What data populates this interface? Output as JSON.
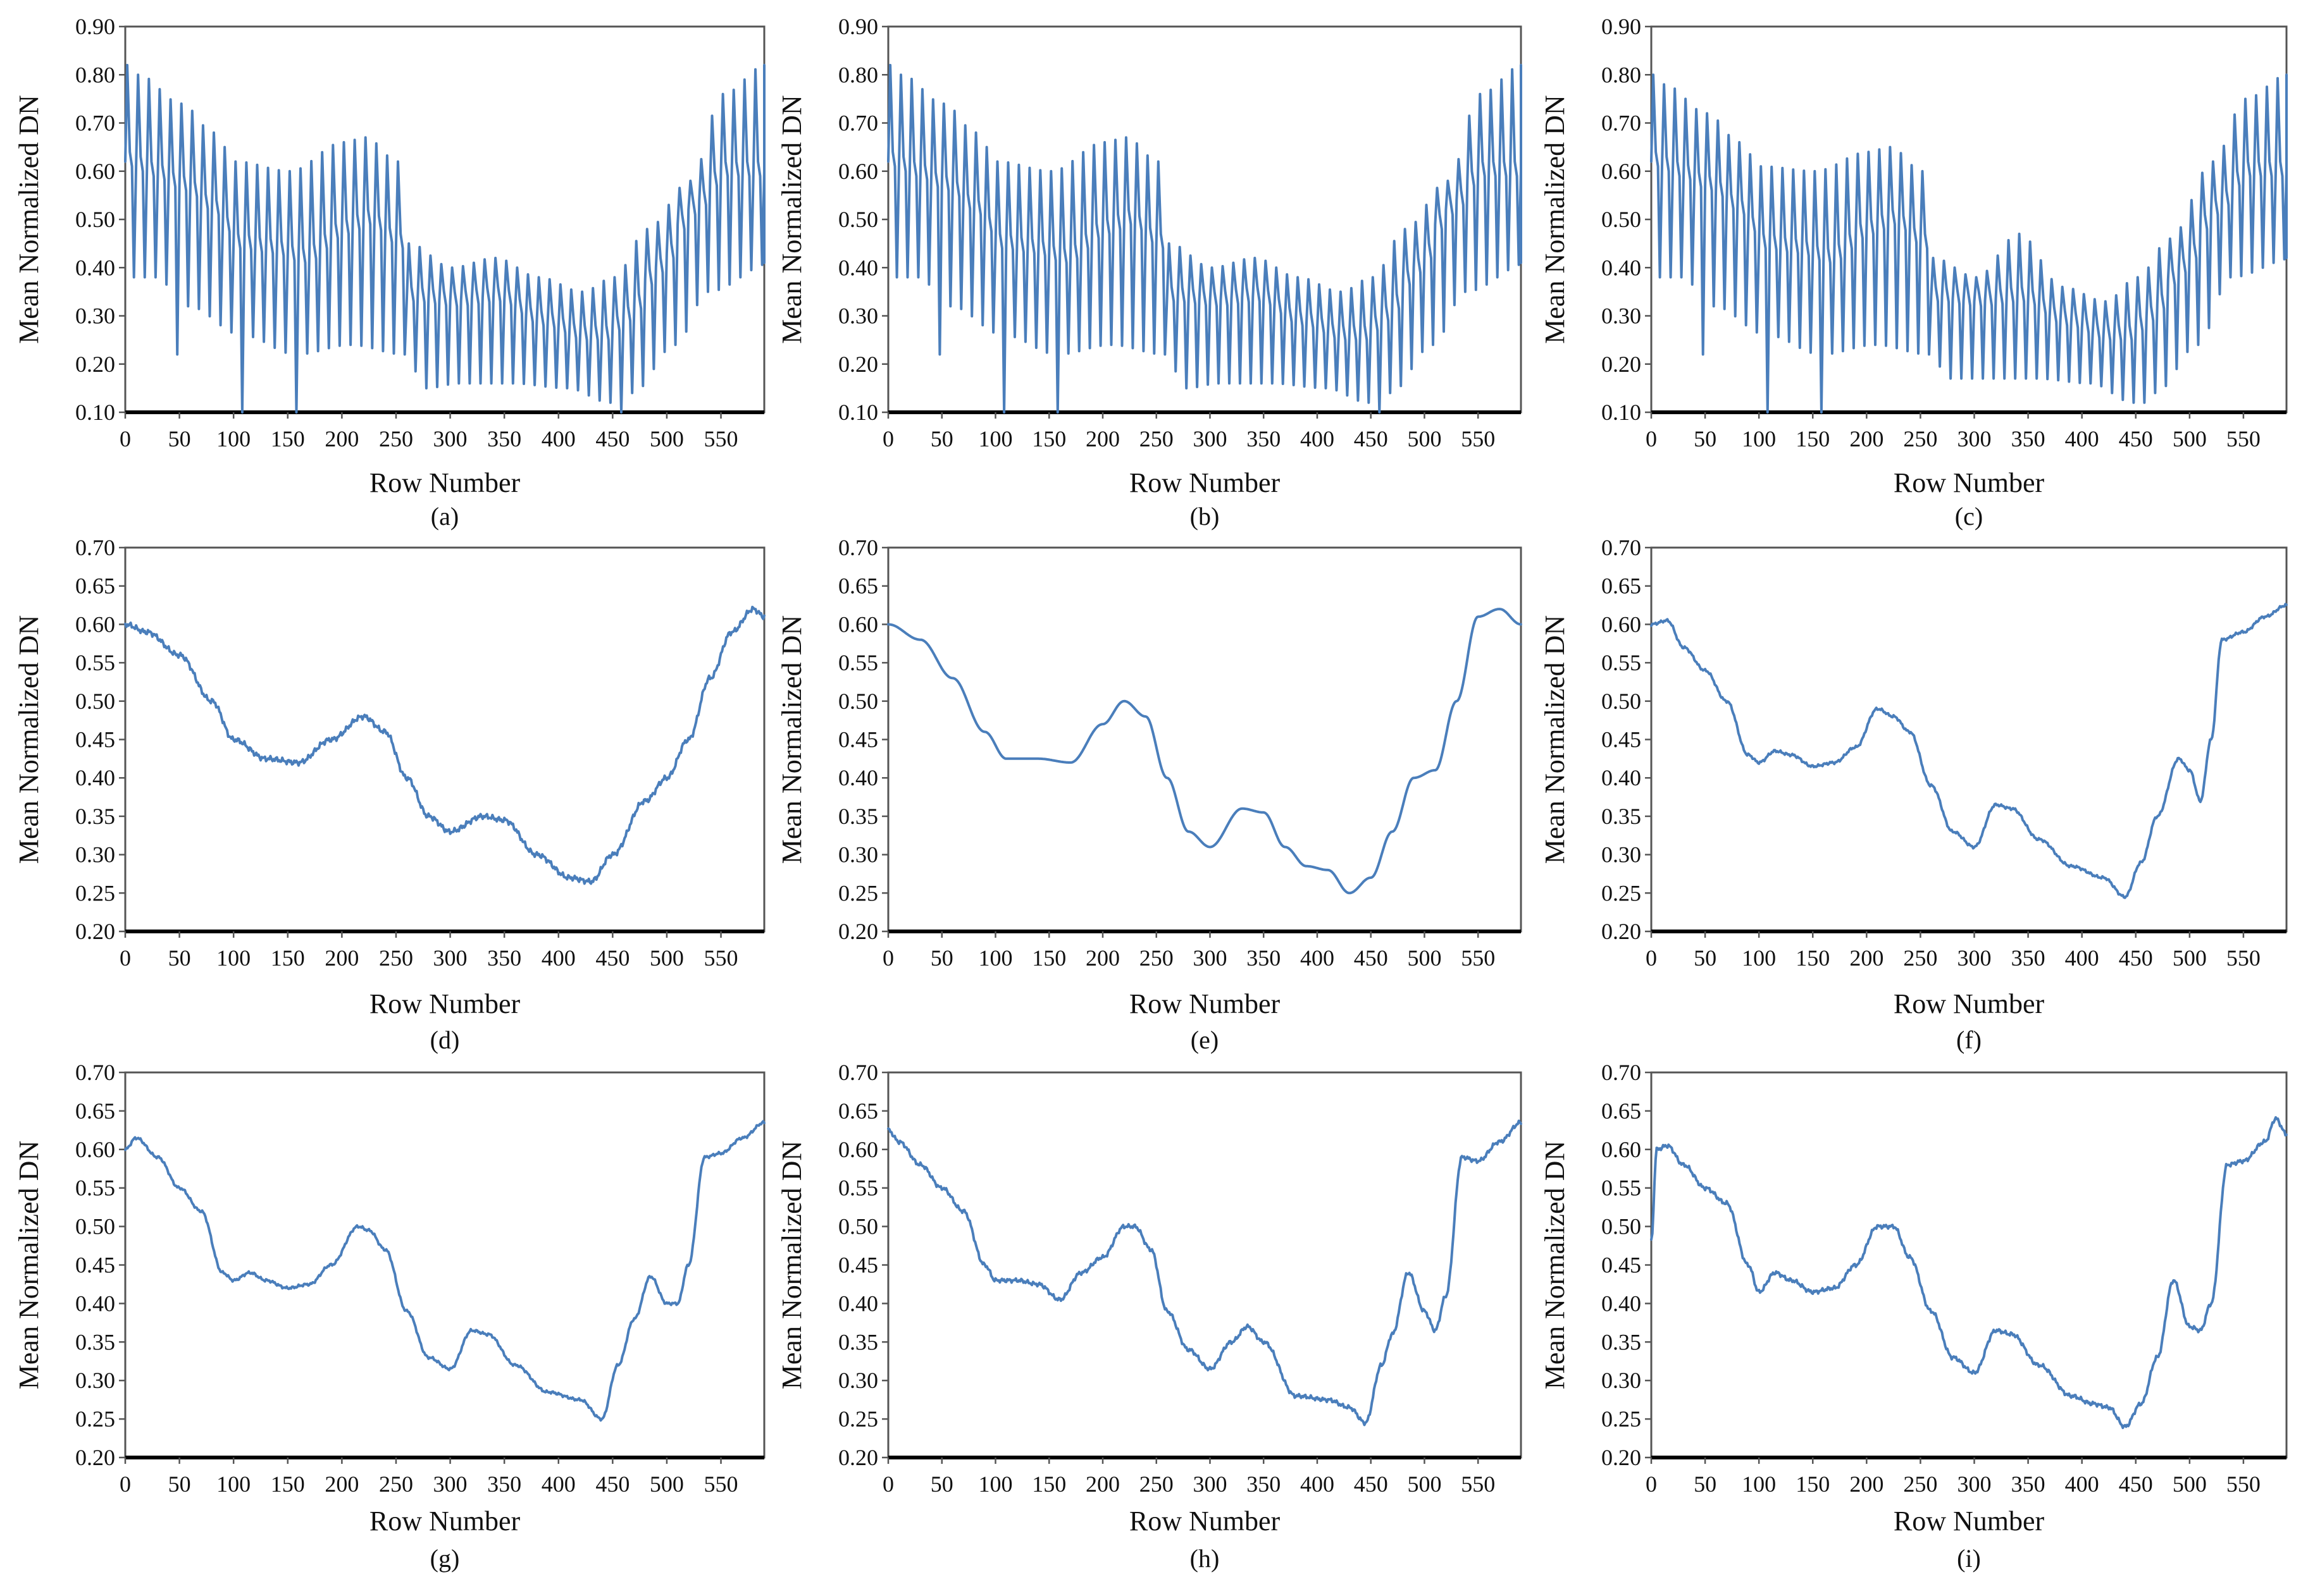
{
  "chart_data": [
    {
      "type": "line",
      "caption": "(a)",
      "xlabel": "Row Number",
      "ylabel": "Mean Normalized DN",
      "xlim": [
        0,
        590
      ],
      "ylim": [
        0.1,
        0.9
      ],
      "xticks": [
        "0",
        "50",
        "100",
        "150",
        "200",
        "250",
        "300",
        "350",
        "400",
        "450",
        "500",
        "550"
      ],
      "yticks": [
        "0.10",
        "0.20",
        "0.30",
        "0.40",
        "0.50",
        "0.60",
        "0.70",
        "0.80",
        "0.90"
      ],
      "series_kind": "striped",
      "line_color": "#4a7ebb",
      "period": 10,
      "baseline_x": [
        0,
        20,
        50,
        80,
        100,
        130,
        160,
        200,
        220,
        250,
        260,
        300,
        340,
        380,
        420,
        440,
        460,
        490,
        520,
        550,
        590
      ],
      "baseline_y": [
        0.62,
        0.6,
        0.57,
        0.52,
        0.45,
        0.44,
        0.42,
        0.48,
        0.5,
        0.45,
        0.34,
        0.33,
        0.34,
        0.29,
        0.26,
        0.26,
        0.3,
        0.4,
        0.52,
        0.6,
        0.6
      ],
      "upper_x": [
        0,
        10,
        50,
        80,
        100,
        150,
        200,
        220,
        250,
        260,
        300,
        340,
        380,
        420,
        450,
        480,
        520,
        550,
        590
      ],
      "upper_y": [
        0.82,
        0.8,
        0.74,
        0.68,
        0.62,
        0.6,
        0.66,
        0.67,
        0.62,
        0.45,
        0.4,
        0.42,
        0.38,
        0.35,
        0.38,
        0.48,
        0.58,
        0.76,
        0.82
      ],
      "lower_x": [
        0,
        20,
        50,
        100,
        150,
        200,
        250,
        270,
        300,
        350,
        400,
        440,
        460,
        500,
        530,
        590
      ],
      "lower_y": [
        0.38,
        0.38,
        0.32,
        0.26,
        0.22,
        0.24,
        0.22,
        0.15,
        0.16,
        0.16,
        0.15,
        0.12,
        0.14,
        0.24,
        0.35,
        0.41
      ],
      "dips": [
        [
          40,
          0.22
        ],
        [
          100,
          0.1
        ],
        [
          150,
          0.1
        ],
        [
          445,
          0.1
        ]
      ]
    },
    {
      "type": "line",
      "caption": "(b)",
      "xlabel": "Row Number",
      "ylabel": "Mean Normalized DN",
      "xlim": [
        0,
        590
      ],
      "ylim": [
        0.1,
        0.9
      ],
      "xticks": [
        "0",
        "50",
        "100",
        "150",
        "200",
        "250",
        "300",
        "350",
        "400",
        "450",
        "500",
        "550"
      ],
      "yticks": [
        "0.10",
        "0.20",
        "0.30",
        "0.40",
        "0.50",
        "0.60",
        "0.70",
        "0.80",
        "0.90"
      ],
      "series_kind": "striped",
      "line_color": "#4a7ebb",
      "period": 10,
      "baseline_x": [
        0,
        20,
        50,
        80,
        100,
        130,
        160,
        200,
        220,
        250,
        260,
        300,
        340,
        380,
        420,
        440,
        460,
        490,
        520,
        550,
        590
      ],
      "baseline_y": [
        0.62,
        0.6,
        0.57,
        0.52,
        0.45,
        0.44,
        0.42,
        0.48,
        0.5,
        0.45,
        0.34,
        0.33,
        0.34,
        0.29,
        0.26,
        0.26,
        0.3,
        0.4,
        0.52,
        0.6,
        0.6
      ],
      "upper_x": [
        0,
        10,
        50,
        80,
        100,
        150,
        200,
        220,
        250,
        260,
        300,
        340,
        380,
        420,
        450,
        480,
        520,
        550,
        590
      ],
      "upper_y": [
        0.82,
        0.8,
        0.74,
        0.68,
        0.62,
        0.6,
        0.66,
        0.67,
        0.62,
        0.45,
        0.4,
        0.42,
        0.38,
        0.35,
        0.38,
        0.48,
        0.58,
        0.76,
        0.82
      ],
      "lower_x": [
        0,
        20,
        50,
        100,
        150,
        200,
        250,
        270,
        300,
        350,
        400,
        440,
        460,
        500,
        530,
        590
      ],
      "lower_y": [
        0.38,
        0.38,
        0.32,
        0.26,
        0.22,
        0.24,
        0.22,
        0.15,
        0.16,
        0.16,
        0.15,
        0.12,
        0.14,
        0.24,
        0.35,
        0.41
      ],
      "dips": [
        [
          40,
          0.22
        ],
        [
          100,
          0.1
        ],
        [
          150,
          0.1
        ],
        [
          445,
          0.1
        ]
      ]
    },
    {
      "type": "line",
      "caption": "(c)",
      "xlabel": "Row Number",
      "ylabel": "Mean Normalized DN",
      "xlim": [
        0,
        590
      ],
      "ylim": [
        0.1,
        0.9
      ],
      "xticks": [
        "0",
        "50",
        "100",
        "150",
        "200",
        "250",
        "300",
        "350",
        "400",
        "450",
        "500",
        "550"
      ],
      "yticks": [
        "0.10",
        "0.20",
        "0.30",
        "0.40",
        "0.50",
        "0.60",
        "0.70",
        "0.80",
        "0.90"
      ],
      "series_kind": "striped",
      "line_color": "#4a7ebb",
      "period": 10,
      "baseline_x": [
        0,
        20,
        50,
        80,
        100,
        130,
        160,
        200,
        220,
        250,
        260,
        300,
        340,
        380,
        420,
        440,
        460,
        490,
        520,
        550,
        590
      ],
      "baseline_y": [
        0.62,
        0.6,
        0.57,
        0.52,
        0.45,
        0.44,
        0.42,
        0.48,
        0.5,
        0.45,
        0.34,
        0.33,
        0.34,
        0.29,
        0.26,
        0.26,
        0.3,
        0.4,
        0.52,
        0.6,
        0.6
      ],
      "upper_x": [
        0,
        10,
        50,
        80,
        100,
        150,
        200,
        220,
        250,
        260,
        300,
        340,
        380,
        420,
        450,
        480,
        520,
        550,
        590
      ],
      "upper_y": [
        0.8,
        0.78,
        0.72,
        0.66,
        0.61,
        0.6,
        0.64,
        0.65,
        0.6,
        0.42,
        0.38,
        0.47,
        0.36,
        0.33,
        0.38,
        0.46,
        0.62,
        0.75,
        0.8
      ],
      "lower_x": [
        0,
        20,
        50,
        100,
        150,
        200,
        250,
        270,
        300,
        350,
        400,
        440,
        460,
        500,
        530,
        590
      ],
      "lower_y": [
        0.38,
        0.38,
        0.32,
        0.26,
        0.22,
        0.24,
        0.22,
        0.17,
        0.17,
        0.17,
        0.16,
        0.12,
        0.14,
        0.24,
        0.38,
        0.42
      ],
      "dips": [
        [
          40,
          0.22
        ],
        [
          100,
          0.1
        ],
        [
          150,
          0.1
        ],
        [
          445,
          0.12
        ]
      ]
    },
    {
      "type": "line",
      "caption": "(d)",
      "xlabel": "Row Number",
      "ylabel": "Mean Normalized DN",
      "xlim": [
        0,
        590
      ],
      "ylim": [
        0.2,
        0.7
      ],
      "xticks": [
        "0",
        "50",
        "100",
        "150",
        "200",
        "250",
        "300",
        "350",
        "400",
        "450",
        "500",
        "550"
      ],
      "yticks": [
        "0.20",
        "0.25",
        "0.30",
        "0.35",
        "0.40",
        "0.45",
        "0.50",
        "0.55",
        "0.60",
        "0.65",
        "0.70"
      ],
      "series_kind": "smooth",
      "line_color": "#4a7ebb",
      "x": [
        0,
        20,
        50,
        80,
        100,
        130,
        160,
        190,
        220,
        240,
        260,
        280,
        300,
        330,
        350,
        380,
        410,
        430,
        450,
        480,
        500,
        520,
        540,
        560,
        580,
        590
      ],
      "y": [
        0.6,
        0.59,
        0.56,
        0.5,
        0.45,
        0.425,
        0.42,
        0.45,
        0.48,
        0.46,
        0.4,
        0.35,
        0.33,
        0.35,
        0.345,
        0.3,
        0.27,
        0.265,
        0.3,
        0.37,
        0.4,
        0.45,
        0.53,
        0.59,
        0.62,
        0.61
      ],
      "jitter": 0.004
    },
    {
      "type": "line",
      "caption": "(e)",
      "xlabel": "Row Number",
      "ylabel": "Mean Normalized DN",
      "xlim": [
        0,
        590
      ],
      "ylim": [
        0.2,
        0.7
      ],
      "xticks": [
        "0",
        "50",
        "100",
        "150",
        "200",
        "250",
        "300",
        "350",
        "400",
        "450",
        "500",
        "550"
      ],
      "yticks": [
        "0.20",
        "0.25",
        "0.30",
        "0.35",
        "0.40",
        "0.45",
        "0.50",
        "0.55",
        "0.60",
        "0.65",
        "0.70"
      ],
      "series_kind": "smooth",
      "line_color": "#4a7ebb",
      "x": [
        0,
        30,
        60,
        90,
        110,
        140,
        170,
        200,
        220,
        240,
        260,
        280,
        300,
        330,
        350,
        370,
        390,
        410,
        430,
        450,
        470,
        490,
        510,
        530,
        550,
        570,
        590
      ],
      "y": [
        0.6,
        0.58,
        0.53,
        0.46,
        0.425,
        0.425,
        0.42,
        0.47,
        0.5,
        0.48,
        0.4,
        0.33,
        0.31,
        0.36,
        0.355,
        0.31,
        0.285,
        0.28,
        0.25,
        0.27,
        0.33,
        0.4,
        0.41,
        0.5,
        0.61,
        0.62,
        0.6
      ],
      "jitter": 0
    },
    {
      "type": "line",
      "caption": "(f)",
      "xlabel": "Row Number",
      "ylabel": "Mean Normalized DN",
      "xlim": [
        0,
        590
      ],
      "ylim": [
        0.2,
        0.7
      ],
      "xticks": [
        "0",
        "50",
        "100",
        "150",
        "200",
        "250",
        "300",
        "350",
        "400",
        "450",
        "500",
        "550"
      ],
      "yticks": [
        "0.20",
        "0.25",
        "0.30",
        "0.35",
        "0.40",
        "0.45",
        "0.50",
        "0.55",
        "0.60",
        "0.65",
        "0.70"
      ],
      "series_kind": "smooth",
      "line_color": "#4a7ebb",
      "x": [
        0,
        15,
        30,
        50,
        70,
        90,
        100,
        115,
        130,
        150,
        170,
        190,
        210,
        225,
        240,
        260,
        280,
        300,
        320,
        335,
        360,
        390,
        420,
        440,
        455,
        470,
        490,
        500,
        510,
        520,
        530,
        550,
        570,
        590
      ],
      "y": [
        0.6,
        0.605,
        0.57,
        0.54,
        0.5,
        0.43,
        0.42,
        0.435,
        0.43,
        0.415,
        0.42,
        0.44,
        0.49,
        0.48,
        0.46,
        0.39,
        0.33,
        0.31,
        0.365,
        0.36,
        0.32,
        0.285,
        0.27,
        0.245,
        0.29,
        0.35,
        0.425,
        0.41,
        0.37,
        0.45,
        0.58,
        0.59,
        0.61,
        0.625
      ],
      "jitter": 0.002
    },
    {
      "type": "line",
      "caption": "(g)",
      "xlabel": "Row Number",
      "ylabel": "Mean Normalized DN",
      "xlim": [
        0,
        590
      ],
      "ylim": [
        0.2,
        0.7
      ],
      "xticks": [
        "0",
        "50",
        "100",
        "150",
        "200",
        "250",
        "300",
        "350",
        "400",
        "450",
        "500",
        "550"
      ],
      "yticks": [
        "0.20",
        "0.25",
        "0.30",
        "0.35",
        "0.40",
        "0.45",
        "0.50",
        "0.55",
        "0.60",
        "0.65",
        "0.70"
      ],
      "series_kind": "smooth",
      "line_color": "#4a7ebb",
      "x": [
        0,
        10,
        30,
        50,
        70,
        90,
        100,
        115,
        130,
        150,
        170,
        190,
        215,
        225,
        240,
        260,
        280,
        300,
        320,
        335,
        360,
        390,
        420,
        440,
        455,
        470,
        485,
        500,
        510,
        520,
        535,
        550,
        570,
        590
      ],
      "y": [
        0.6,
        0.615,
        0.59,
        0.55,
        0.52,
        0.44,
        0.43,
        0.44,
        0.43,
        0.42,
        0.425,
        0.45,
        0.5,
        0.495,
        0.47,
        0.39,
        0.33,
        0.315,
        0.365,
        0.36,
        0.32,
        0.285,
        0.275,
        0.25,
        0.32,
        0.38,
        0.435,
        0.4,
        0.4,
        0.45,
        0.59,
        0.595,
        0.615,
        0.635
      ],
      "jitter": 0.002
    },
    {
      "type": "line",
      "caption": "(h)",
      "xlabel": "Row Number",
      "ylabel": "Mean Normalized DN",
      "xlim": [
        0,
        590
      ],
      "ylim": [
        0.2,
        0.7
      ],
      "xticks": [
        "0",
        "50",
        "100",
        "150",
        "200",
        "250",
        "300",
        "350",
        "400",
        "450",
        "500",
        "550"
      ],
      "yticks": [
        "0.20",
        "0.25",
        "0.30",
        "0.35",
        "0.40",
        "0.45",
        "0.50",
        "0.55",
        "0.60",
        "0.65",
        "0.70"
      ],
      "series_kind": "smooth",
      "line_color": "#4a7ebb",
      "x": [
        0,
        10,
        30,
        50,
        70,
        90,
        100,
        120,
        140,
        160,
        180,
        200,
        220,
        230,
        245,
        260,
        280,
        300,
        320,
        335,
        350,
        380,
        410,
        430,
        445,
        460,
        470,
        485,
        500,
        510,
        520,
        535,
        550,
        570,
        590
      ],
      "y": [
        0.625,
        0.61,
        0.58,
        0.55,
        0.52,
        0.45,
        0.43,
        0.43,
        0.425,
        0.405,
        0.44,
        0.46,
        0.5,
        0.5,
        0.47,
        0.39,
        0.34,
        0.315,
        0.35,
        0.37,
        0.35,
        0.28,
        0.275,
        0.265,
        0.245,
        0.32,
        0.36,
        0.44,
        0.39,
        0.365,
        0.41,
        0.59,
        0.585,
        0.61,
        0.635
      ],
      "jitter": 0.003
    },
    {
      "type": "line",
      "caption": "(i)",
      "xlabel": "Row Number",
      "ylabel": "Mean Normalized DN",
      "xlim": [
        0,
        590
      ],
      "ylim": [
        0.2,
        0.7
      ],
      "xticks": [
        "0",
        "50",
        "100",
        "150",
        "200",
        "250",
        "300",
        "350",
        "400",
        "450",
        "500",
        "550"
      ],
      "yticks": [
        "0.20",
        "0.25",
        "0.30",
        "0.35",
        "0.40",
        "0.45",
        "0.50",
        "0.55",
        "0.60",
        "0.65",
        "0.70"
      ],
      "series_kind": "smooth",
      "line_color": "#4a7ebb",
      "x": [
        0,
        5,
        15,
        30,
        50,
        70,
        90,
        100,
        115,
        130,
        150,
        170,
        190,
        210,
        225,
        240,
        260,
        280,
        300,
        320,
        335,
        360,
        390,
        410,
        425,
        440,
        455,
        470,
        485,
        500,
        510,
        520,
        535,
        550,
        570,
        580,
        590
      ],
      "y": [
        0.48,
        0.6,
        0.605,
        0.58,
        0.55,
        0.53,
        0.45,
        0.415,
        0.44,
        0.43,
        0.415,
        0.42,
        0.45,
        0.5,
        0.5,
        0.46,
        0.39,
        0.33,
        0.31,
        0.365,
        0.36,
        0.32,
        0.28,
        0.27,
        0.265,
        0.24,
        0.27,
        0.33,
        0.43,
        0.37,
        0.365,
        0.4,
        0.58,
        0.585,
        0.61,
        0.64,
        0.62
      ],
      "jitter": 0.003
    }
  ]
}
